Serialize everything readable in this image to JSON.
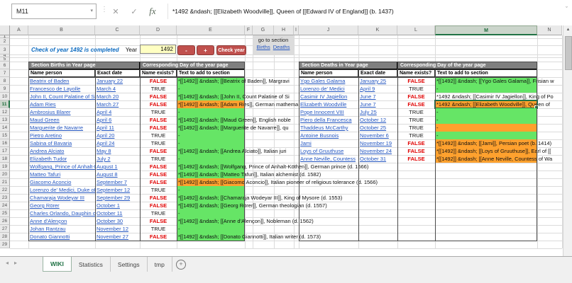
{
  "formula_bar": {
    "cell_ref": "M11",
    "formula": "*1492 &ndash; [[Elizabeth Woodville]], Queen of [[Edward IV of England]] (b. 1437)"
  },
  "controls": {
    "status_message": "Check of year 1492 is completed",
    "year_label": "Year",
    "year_value": "1492",
    "minus_button": "-",
    "plus_button": "+",
    "check_button": "Check year",
    "goto_label": "go to section",
    "births_link": "Births",
    "deaths_link": "Deaths"
  },
  "grid": {
    "columns": [
      "A",
      "B",
      "C",
      "D",
      "E",
      "F",
      "G",
      "H",
      "I",
      "J",
      "K",
      "L",
      "M",
      "N"
    ],
    "row_numbers": [
      "1",
      "2",
      "3",
      "4",
      "5",
      "6",
      "7",
      "8",
      "9",
      "10",
      "11",
      "12",
      "13",
      "14",
      "15",
      "16",
      "17",
      "18",
      "19",
      "20",
      "21",
      "22",
      "23",
      "24",
      "25",
      "26",
      "27",
      "28",
      "29"
    ],
    "selected_column": "M",
    "selected_row": 11,
    "selected_cell": "M11"
  },
  "births_table": {
    "section_header": "Section Births in Year page",
    "day_header": "Corresponding Day of the year page",
    "columns": [
      "Name person",
      "Exact date",
      "Name exists?",
      "Text to add to section"
    ],
    "rows": [
      {
        "row": 8,
        "name": "Beatrix of Baden",
        "date": "January 22",
        "exists": "FALSE",
        "text": "*[[1492]] &ndash; [[Beatrix of Baden]], Margravi",
        "fill": "green"
      },
      {
        "row": 9,
        "name": "Francesco de Layolle",
        "date": "March 4",
        "exists": "TRUE",
        "text": "-",
        "fill": "green"
      },
      {
        "row": 10,
        "name": "John II, Count Palatine of Sim",
        "date": "March 20",
        "exists": "FALSE",
        "text": "*[[1492]] &ndash; [[John II, Count Palatine of Si",
        "fill": "green"
      },
      {
        "row": 11,
        "name": "Adam Ries",
        "date": "March 27",
        "exists": "FALSE",
        "text": "*[[1492]] &ndash; [[Adam Ries]], German mathema",
        "fill": "orange"
      },
      {
        "row": 12,
        "name": "Ambrosius Blarer",
        "date": "April 4",
        "exists": "TRUE",
        "text": "-",
        "fill": "green"
      },
      {
        "row": 13,
        "name": "Maud Green",
        "date": "April 6",
        "exists": "FALSE",
        "text": "*[[1492]] &ndash; [[Maud Green]], English noble",
        "fill": "green"
      },
      {
        "row": 14,
        "name": "Marguerite de Navarre",
        "date": "April 11",
        "exists": "FALSE",
        "text": "*[[1492]] &ndash; [[Marguerite de Navarre]], qu",
        "fill": "green"
      },
      {
        "row": 15,
        "name": "Pietro Aretino",
        "date": "April 20",
        "exists": "TRUE",
        "text": "-",
        "fill": "green"
      },
      {
        "row": 16,
        "name": "Sabina of Bavaria",
        "date": "April 24",
        "exists": "TRUE",
        "text": "-",
        "fill": "green"
      },
      {
        "row": 17,
        "name": "Andrea Alciato",
        "date": "May 8",
        "exists": "FALSE",
        "text": "*[[1492]] &ndash; [[Andrea Alciato]], Italian juri",
        "fill": "green"
      },
      {
        "row": 18,
        "name": "Elizabeth Tudor",
        "date": "July 2",
        "exists": "TRUE",
        "text": "-",
        "fill": "green"
      },
      {
        "row": 19,
        "name": "Wolfgang, Prince of Anhalt-K",
        "date": "August 1",
        "exists": "FALSE",
        "text": "*[[1492]] &ndash; [[Wolfgang, Prince of Anhalt-Köthen]], German prince (d. 1566)",
        "fill": "green"
      },
      {
        "row": 20,
        "name": "Matteo Tafuri",
        "date": "August 8",
        "exists": "FALSE",
        "text": "*[[1492]] &ndash; [[Matteo Tafuri]], Italian alchemist (d. 1582)",
        "fill": "green"
      },
      {
        "row": 21,
        "name": "Giacomo Aconcio",
        "date": "September 7",
        "exists": "FALSE",
        "text": "*[[1492]] &ndash; [[Giacomo Aconcio]], Italian pioneer of religious tolerance (d. 1566)",
        "fill": "orange"
      },
      {
        "row": 22,
        "name": "Lorenzo de' Medici, Duke of U",
        "date": "September 12",
        "exists": "TRUE",
        "text": "-",
        "fill": "green"
      },
      {
        "row": 23,
        "name": "Chamaraja Wodeyar III",
        "date": "September 29",
        "exists": "FALSE",
        "text": "*[[1492]] &ndash; [[Chamaraja Wodeyar III]], King of Mysore (d. 1553)",
        "fill": "green"
      },
      {
        "row": 24,
        "name": "Georg Rörer",
        "date": "October 1",
        "exists": "FALSE",
        "text": "*[[1492]] &ndash; [[Georg Rörer]], German theologian (d. 1557)",
        "fill": "green"
      },
      {
        "row": 25,
        "name": "Charles Orlando, Dauphin of",
        "date": "October 11",
        "exists": "TRUE",
        "text": "-",
        "fill": "green"
      },
      {
        "row": 26,
        "name": "Anne d'Alençon",
        "date": "October 30",
        "exists": "FALSE",
        "text": "*[[1492]] &ndash; [[Anne d'Alençon]], Nobleman (d. 1562)",
        "fill": "green"
      },
      {
        "row": 27,
        "name": "Johan Rantzau",
        "date": "November 12",
        "exists": "TRUE",
        "text": "-",
        "fill": "green"
      },
      {
        "row": 28,
        "name": "Donato Giannotti",
        "date": "November 27",
        "exists": "FALSE",
        "text": "*[[1492]] &ndash; [[Donato Giannotti]], Italian writer (d. 1573)",
        "fill": "green"
      }
    ]
  },
  "deaths_table": {
    "section_header": "Section Deaths in Year page",
    "day_header": "Corresponding Day of the year page",
    "columns": [
      "Name person",
      "Exact date",
      "Name exists?",
      "Text to add to section"
    ],
    "rows": [
      {
        "row": 8,
        "name": "Ygo Gales Galama",
        "date": "January 25",
        "exists": "FALSE",
        "text": "*[[1492]] &ndash; [[Ygo Gales Galama]], Frisian w",
        "fill": "green"
      },
      {
        "row": 9,
        "name": "Lorenzo de' Medici",
        "date": "April 9",
        "exists": "TRUE",
        "text": "-",
        "fill": "green"
      },
      {
        "row": 10,
        "name": "Casimir IV Jagiellon",
        "date": "June 7",
        "exists": "FALSE",
        "text": "*1492 &ndash; [[Casimir IV Jagiellon]], King of Po",
        "fill": "none"
      },
      {
        "row": 11,
        "name": "Elizabeth Woodville",
        "date": "June 7",
        "exists": "FALSE",
        "text": "*1492 &ndash; [[Elizabeth Woodville]], Queen of",
        "fill": "orange",
        "selected": true
      },
      {
        "row": 12,
        "name": "Pope Innocent VIII",
        "date": "July 25",
        "exists": "TRUE",
        "text": "-",
        "fill": "green"
      },
      {
        "row": 13,
        "name": "Piero della Francesca",
        "date": "October 12",
        "exists": "TRUE",
        "text": "-",
        "fill": "green"
      },
      {
        "row": 14,
        "name": "Thaddeus McCarthy",
        "date": "October 25",
        "exists": "TRUE",
        "text": "-",
        "fill": "orange"
      },
      {
        "row": 15,
        "name": "Antoine Busnois",
        "date": "November 6",
        "exists": "TRUE",
        "text": "-",
        "fill": "green"
      },
      {
        "row": 16,
        "name": "Jami",
        "date": "November 19",
        "exists": "FALSE",
        "text": "*[[1492]] &ndash; [[Jami]], Persian poet (b. 1414)",
        "fill": "orange"
      },
      {
        "row": 17,
        "name": "Loys of Gruuthuse",
        "date": "November 24",
        "exists": "FALSE",
        "text": "*[[1492]] &ndash; [[Loys of Gruuthuse]], Earl of [[",
        "fill": "orange"
      },
      {
        "row": 18,
        "name": "Anne Neville, Countess",
        "date": "October 31",
        "exists": "FALSE",
        "text": "*[[1492]] &ndash; [[Anne Neville, Countess of Wa",
        "fill": "orange"
      }
    ]
  },
  "tabs": {
    "items": [
      {
        "label": "WIKI",
        "active": true
      },
      {
        "label": "Statistics",
        "active": false
      },
      {
        "label": "Settings",
        "active": false
      },
      {
        "label": "tmp",
        "active": false
      }
    ],
    "add_label": "+"
  },
  "colors": {
    "green_fill": "#66E566",
    "orange_fill": "#FFA12E",
    "accent_green": "#217346",
    "button_red": "#C0504D",
    "link_blue": "#2456C0",
    "false_red": "#E00000",
    "section_header_gray": "#7F7F7F",
    "status_blue": "#0B6AC0",
    "year_input_yellow": "#FFFFC2"
  }
}
